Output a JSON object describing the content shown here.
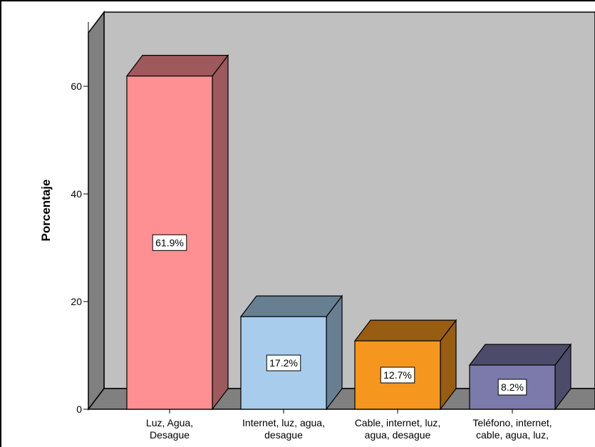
{
  "chart_data": {
    "type": "bar",
    "title": "",
    "ylabel": "Porcentaje",
    "xlabel": "",
    "ylim": [
      0,
      73
    ],
    "yticks": [
      0,
      20,
      40,
      60
    ],
    "grid": false,
    "style": "3d",
    "categories": [
      [
        "Luz, Agua,",
        "Desague"
      ],
      [
        "Internet, luz, agua,",
        "desague"
      ],
      [
        "Cable, internet, luz,",
        "agua, desague"
      ],
      [
        "Teléfono, internet,",
        "cable, agua, luz,"
      ]
    ],
    "values": [
      61.9,
      17.2,
      12.7,
      8.2
    ],
    "data_labels": [
      "61.9%",
      "17.2%",
      "12.7%",
      "8.2%"
    ],
    "colors": {
      "bars": [
        "#fe8f93",
        "#a8cdec",
        "#f5961f",
        "#7b7aab"
      ],
      "wall": "#c0c0c0",
      "side_wall": "#808080",
      "floor": "#808080"
    }
  }
}
